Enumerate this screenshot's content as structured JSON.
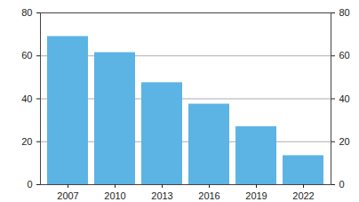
{
  "chart_data": {
    "type": "bar",
    "categories": [
      "2007",
      "2010",
      "2013",
      "2016",
      "2019",
      "2022"
    ],
    "values": [
      69,
      61.5,
      47.5,
      37.5,
      27,
      13.5
    ],
    "color": "#5cb4e4",
    "ylim": [
      0,
      80
    ],
    "yticks": [
      0,
      20,
      40,
      60,
      80
    ],
    "grid": true
  }
}
